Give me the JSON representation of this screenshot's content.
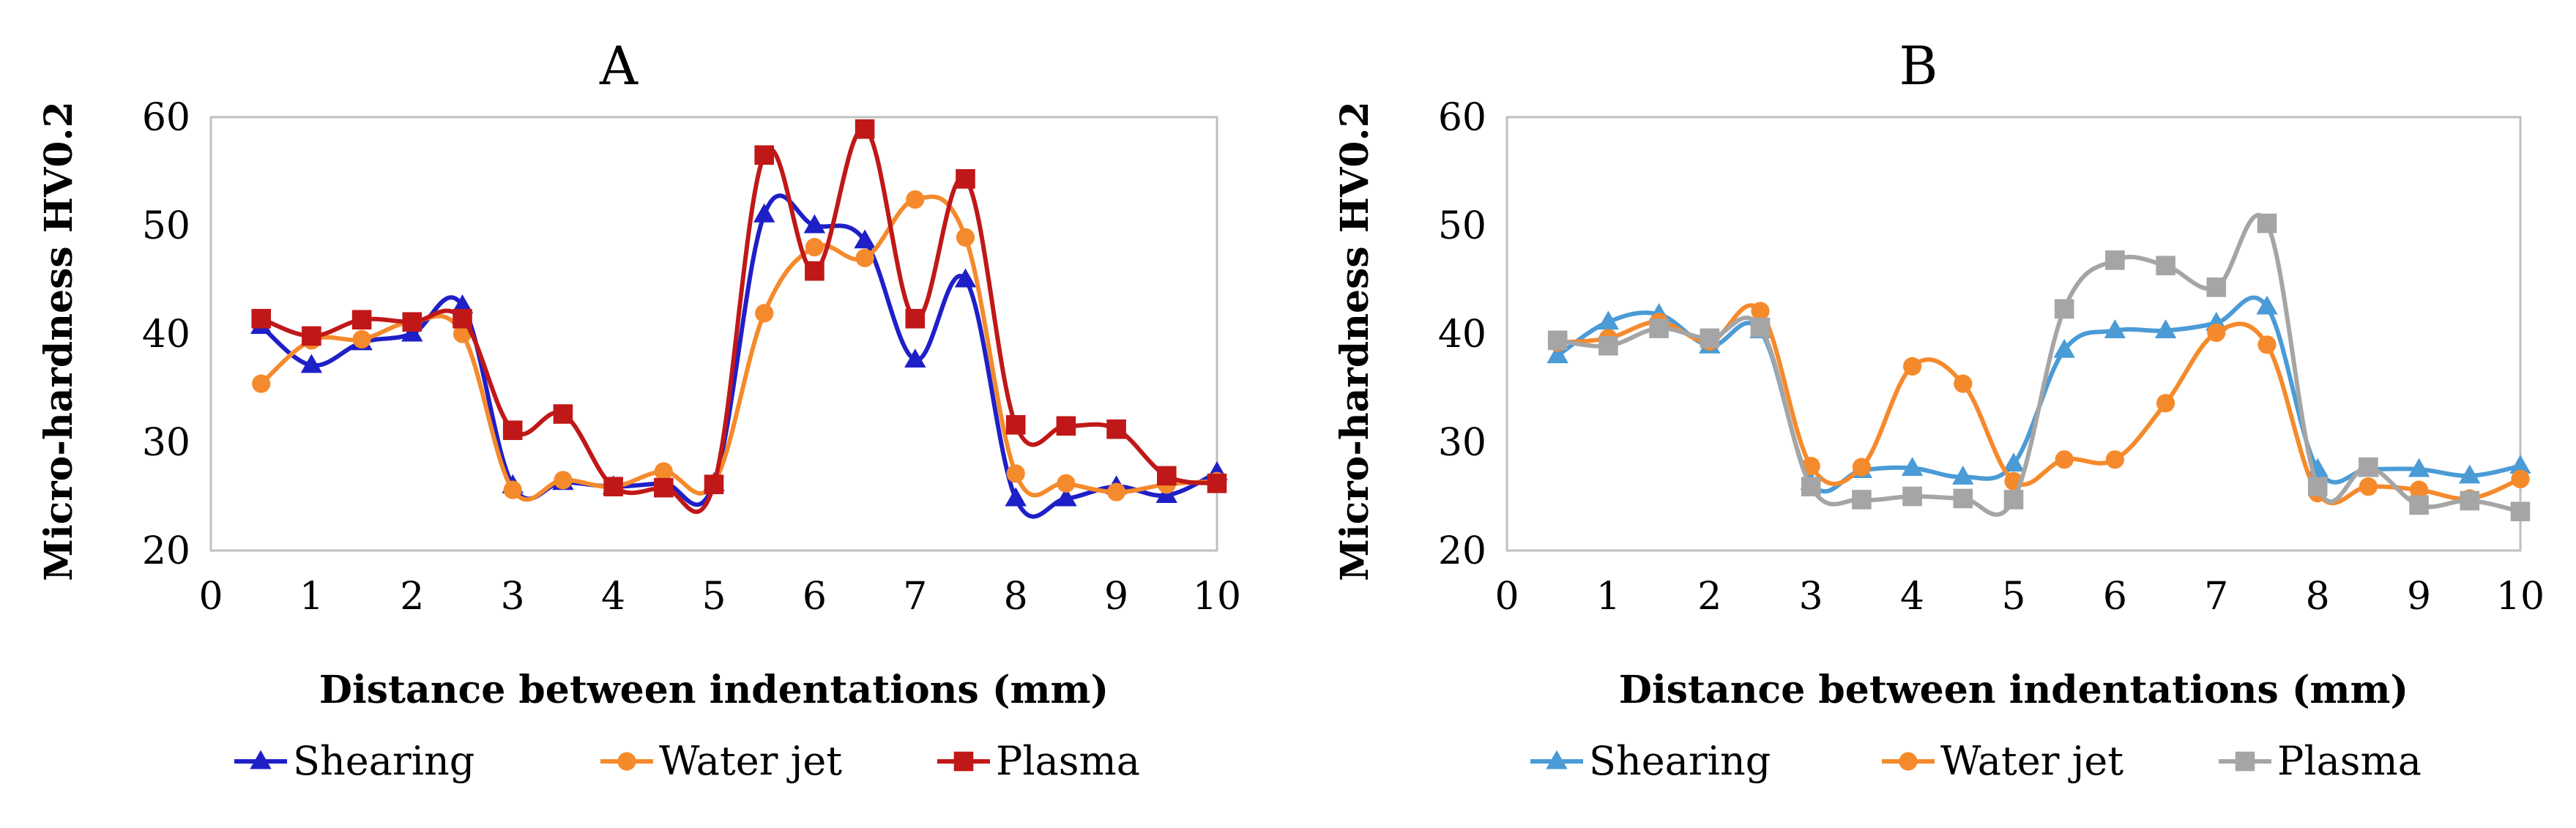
{
  "chart_data": [
    {
      "type": "line",
      "title": "A",
      "xlabel": "Distance between indentations (mm)",
      "ylabel": "Micro-hardness HV0.2",
      "xlim": [
        0,
        10
      ],
      "ylim": [
        20,
        60
      ],
      "xticks": [
        "0",
        "1",
        "2",
        "3",
        "4",
        "5",
        "6",
        "7",
        "8",
        "9",
        "10"
      ],
      "yticks": [
        "20",
        "30",
        "40",
        "50",
        "60"
      ],
      "grid": false,
      "legend": "bottom",
      "x": [
        0.5,
        1,
        1.5,
        2,
        2.5,
        3,
        3.5,
        4,
        4.5,
        5,
        5.5,
        6,
        6.5,
        7,
        7.5,
        8,
        8.5,
        9,
        9.5,
        10
      ],
      "series": [
        {
          "name": "Shearing",
          "color": "#1f1fc8",
          "marker": "triangle",
          "values": [
            40.7,
            37.1,
            39.2,
            40.0,
            42.6,
            26.0,
            26.3,
            25.9,
            26.2,
            26.2,
            51.0,
            50.0,
            48.6,
            37.6,
            45.0,
            24.8,
            24.8,
            25.9,
            25.1,
            27.2
          ]
        },
        {
          "name": "Water jet",
          "color": "#f58a2c",
          "marker": "circle",
          "values": [
            35.4,
            39.4,
            39.5,
            41.1,
            40.0,
            25.6,
            26.5,
            25.9,
            27.3,
            26.2,
            41.9,
            48.0,
            47.0,
            52.4,
            48.9,
            27.1,
            26.2,
            25.4,
            26.1,
            26.4
          ]
        },
        {
          "name": "Plasma",
          "color": "#c01818",
          "marker": "square",
          "values": [
            41.4,
            39.8,
            41.3,
            41.1,
            41.4,
            31.1,
            32.6,
            25.9,
            25.8,
            26.1,
            56.5,
            45.8,
            58.9,
            41.4,
            54.3,
            31.6,
            31.5,
            31.2,
            26.9,
            26.2
          ]
        }
      ]
    },
    {
      "type": "line",
      "title": "B",
      "xlabel": "Distance between indentations (mm)",
      "ylabel": "Micro-hardness HV0.2",
      "xlim": [
        0,
        10
      ],
      "ylim": [
        20,
        60
      ],
      "xticks": [
        "0",
        "1",
        "2",
        "3",
        "4",
        "5",
        "6",
        "7",
        "8",
        "9",
        "10"
      ],
      "yticks": [
        "20",
        "30",
        "40",
        "50",
        "60"
      ],
      "grid": false,
      "legend": "bottom",
      "x": [
        0.5,
        1,
        1.5,
        2,
        2.5,
        3,
        3.5,
        4,
        4.5,
        5,
        5.5,
        6,
        6.5,
        7,
        7.5,
        8,
        8.5,
        9,
        9.5,
        10
      ],
      "series": [
        {
          "name": "Shearing",
          "color": "#4a9bd6",
          "marker": "triangle",
          "values": [
            38.0,
            41.1,
            41.8,
            38.9,
            40.3,
            26.3,
            27.4,
            27.6,
            26.8,
            28.0,
            38.5,
            40.3,
            40.3,
            41.0,
            42.5,
            27.5,
            27.5,
            27.5,
            26.9,
            27.8
          ]
        },
        {
          "name": "Water jet",
          "color": "#f58a2c",
          "marker": "circle",
          "values": [
            39.2,
            39.6,
            41.1,
            39.3,
            42.1,
            27.8,
            27.7,
            37.0,
            35.4,
            26.4,
            28.4,
            28.4,
            33.6,
            40.1,
            39.0,
            25.3,
            25.9,
            25.6,
            24.8,
            26.6
          ]
        },
        {
          "name": "Plasma",
          "color": "#a5a5a5",
          "marker": "square",
          "values": [
            39.4,
            38.9,
            40.5,
            39.6,
            40.6,
            25.9,
            24.7,
            25.0,
            24.8,
            24.7,
            42.3,
            46.8,
            46.3,
            44.3,
            50.2,
            25.9,
            27.7,
            24.2,
            24.6,
            23.6
          ]
        }
      ]
    }
  ]
}
